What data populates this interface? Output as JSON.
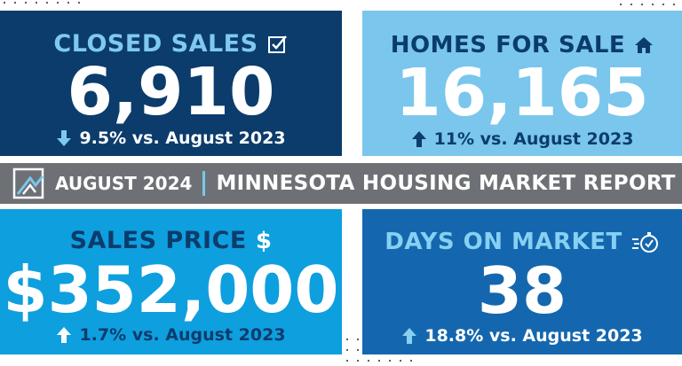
{
  "banner": {
    "date": "AUGUST 2024",
    "title": "MINNESOTA HOUSING MARKET REPORT"
  },
  "cards": [
    {
      "label": "CLOSED SALES",
      "icon": "checkbox-icon",
      "value": "6,910",
      "trend": "down",
      "change": "9.5% vs. August 2023"
    },
    {
      "label": "HOMES FOR SALE",
      "icon": "house-icon",
      "value": "16,165",
      "trend": "up",
      "change": "11% vs. August 2023"
    },
    {
      "label": "SALES PRICE",
      "icon": "dollar-icon",
      "value": "$352,000",
      "trend": "up",
      "change": "1.7% vs. August 2023"
    },
    {
      "label": "DAYS ON MARKET",
      "icon": "stopwatch-icon",
      "value": "38",
      "trend": "up",
      "change": "18.8% vs. August 2023"
    }
  ],
  "colors": {
    "navy": "#0b3c6c",
    "light_blue": "#7ac6ec",
    "bright_blue": "#0e9fdf",
    "medium_blue": "#1467ae",
    "banner_gray": "#6d7175"
  }
}
